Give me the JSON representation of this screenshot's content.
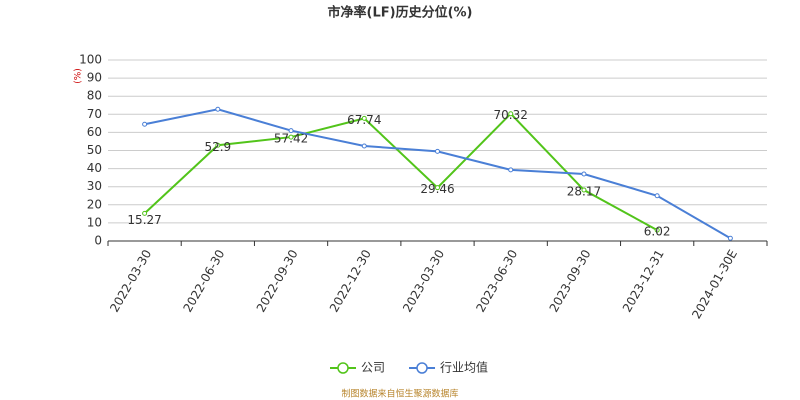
{
  "chart_data": {
    "type": "line",
    "title": "市净率(LF)历史分位(%)",
    "y_label": "(%)",
    "categories": [
      "2022-03-30",
      "2022-06-30",
      "2022-09-30",
      "2022-12-30",
      "2023-03-30",
      "2023-06-30",
      "2023-09-30",
      "2023-12-31",
      "2024-01-30E"
    ],
    "series": [
      {
        "name": "公司",
        "color": "#52c41a",
        "values": [
          15.27,
          52.9,
          57.42,
          67.74,
          29.46,
          70.32,
          28.17,
          6.02,
          null
        ],
        "labels": true
      },
      {
        "name": "行业均值",
        "color": "#4a7fd6",
        "values": [
          64.5,
          72.8,
          61,
          52.5,
          49.5,
          39.3,
          37,
          25,
          1.5
        ],
        "labels": false
      }
    ],
    "ylim": [
      0,
      100
    ],
    "yticks": [
      0,
      10,
      20,
      30,
      40,
      50,
      60,
      70,
      80,
      90,
      100
    ],
    "grid": true,
    "source": "制图数据来自恒生聚源数据库"
  }
}
